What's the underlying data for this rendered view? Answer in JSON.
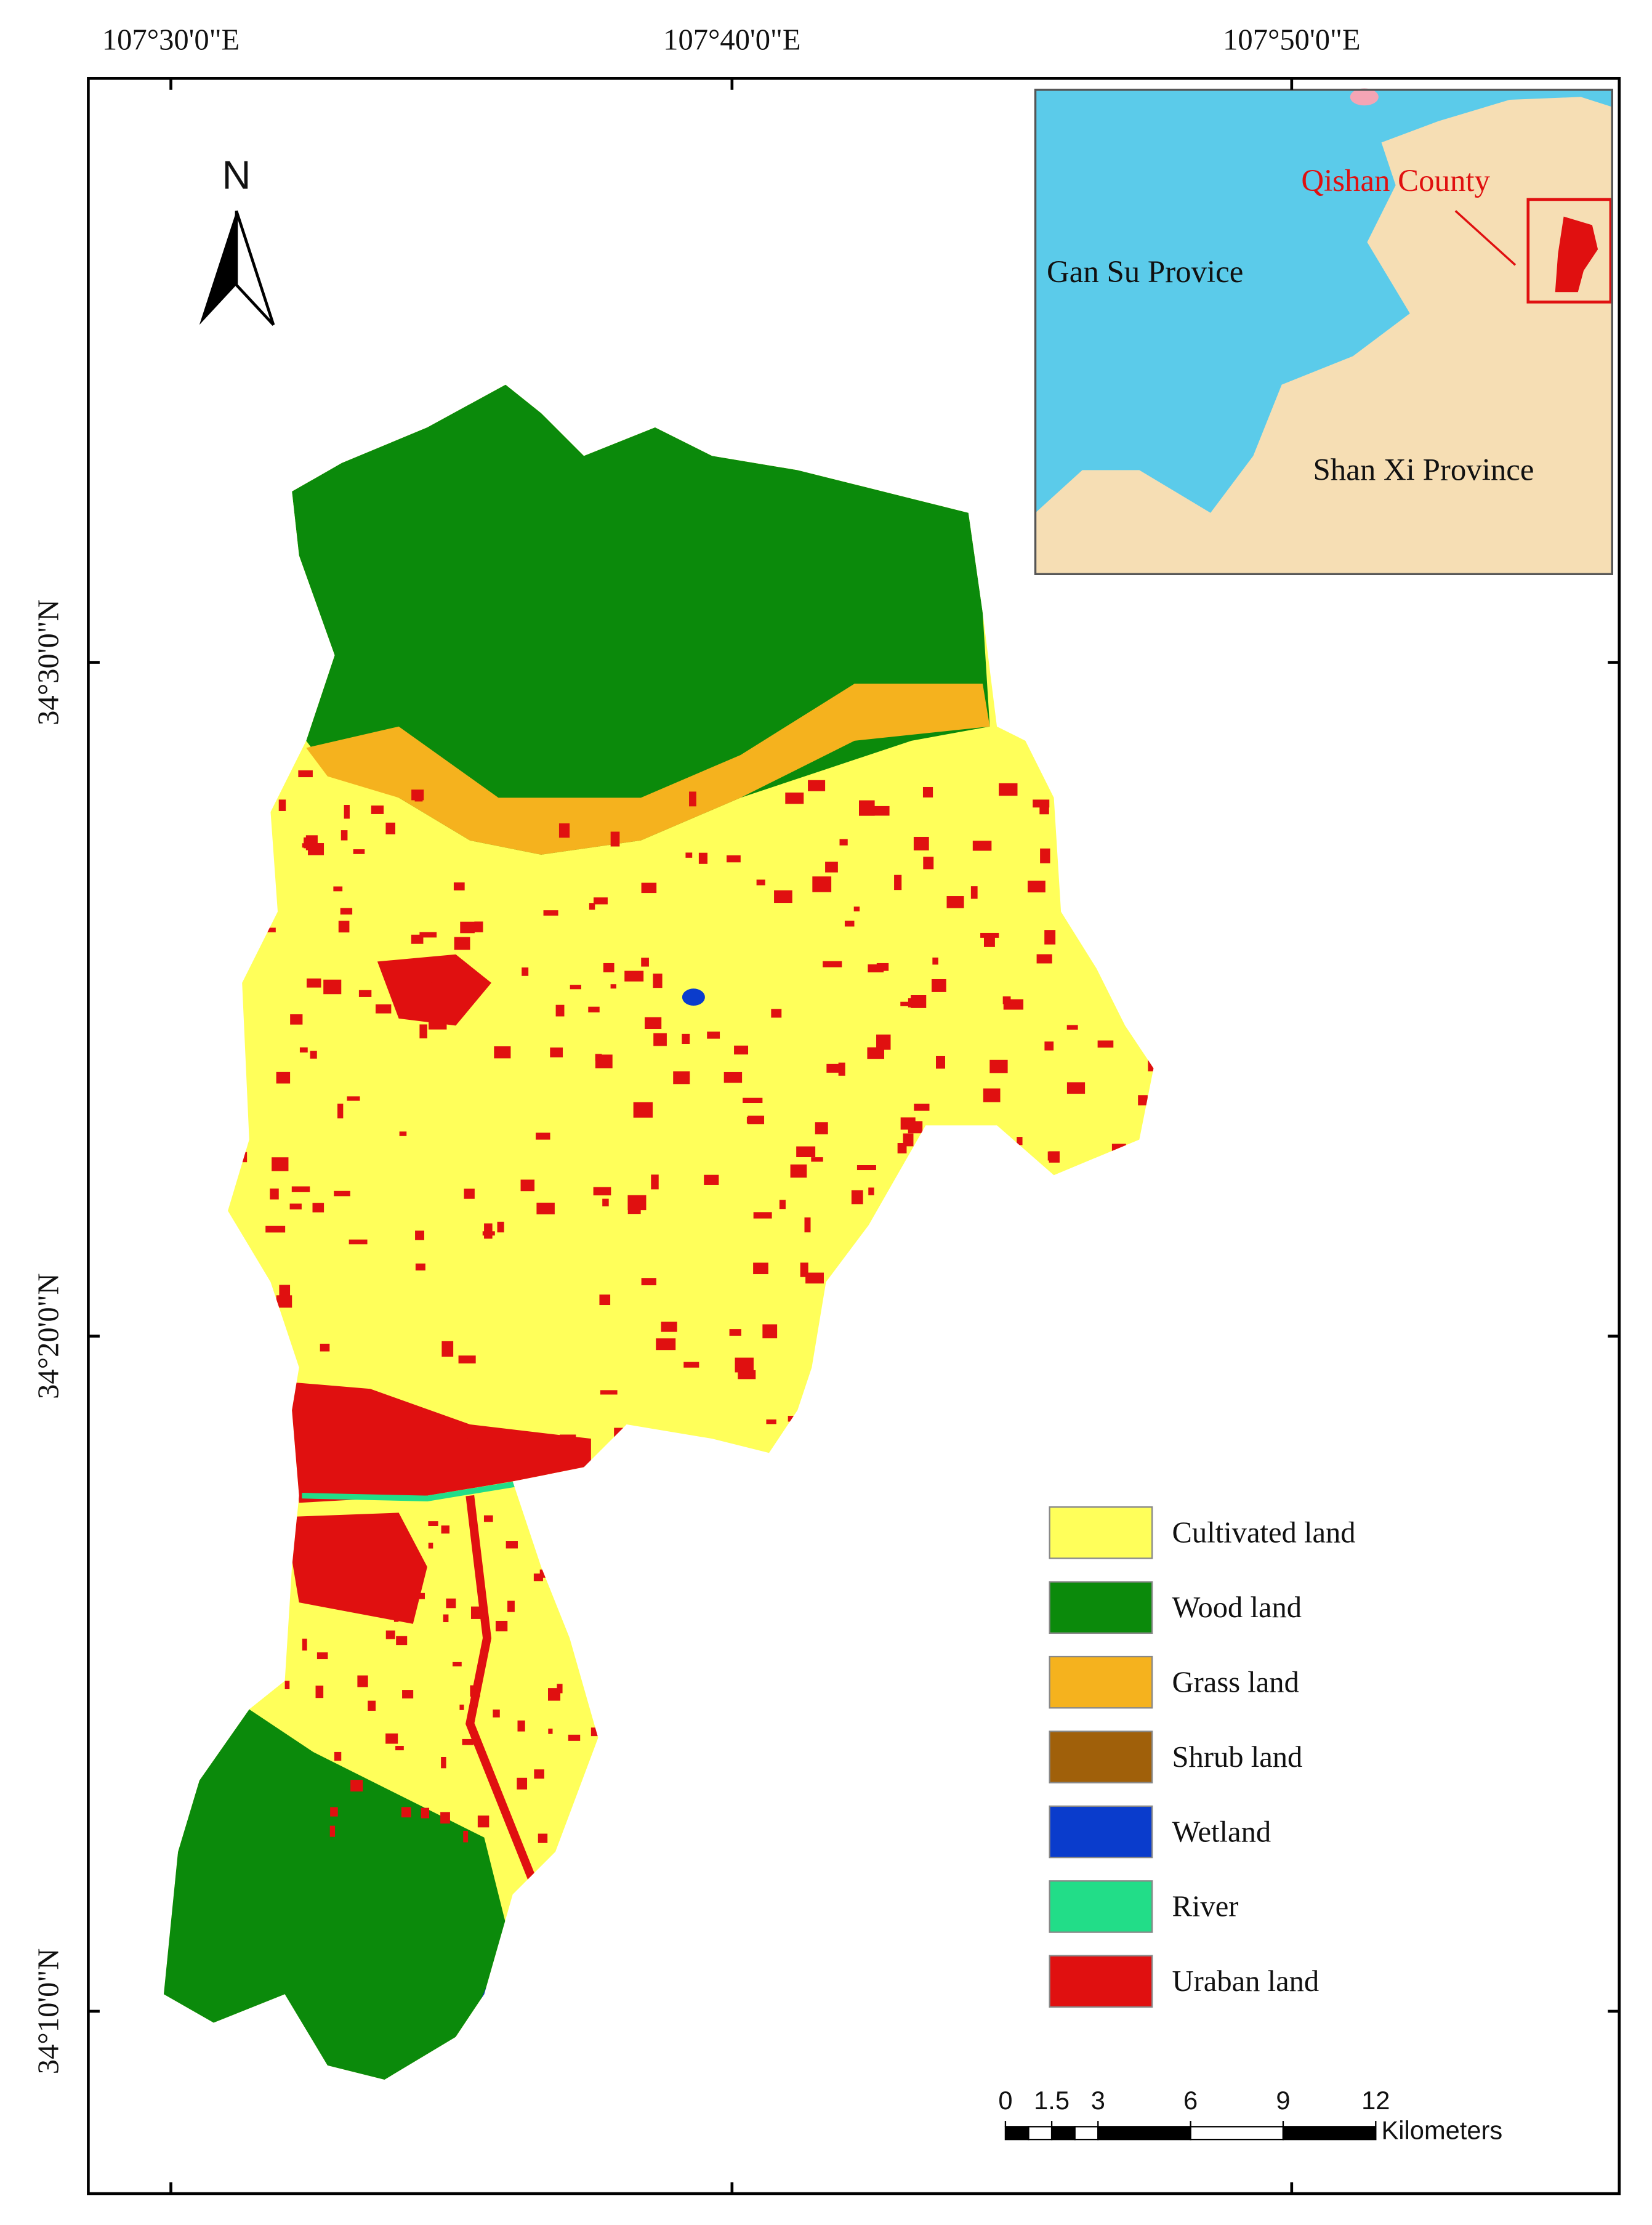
{
  "map": {
    "longitude_labels": [
      "107°30'0\"E",
      "107°40'0\"E",
      "107°50'0\"E"
    ],
    "latitude_labels": [
      "34°30'0\"N",
      "34°20'0\"N",
      "34°10'0\"N"
    ],
    "north_arrow": "N",
    "inset": {
      "county": "Qishan County",
      "gansu": "Gan Su Provice",
      "shaanxi": "Shan Xi Province"
    },
    "legend": [
      {
        "label": "Cultivated land",
        "color": "#ffff5a"
      },
      {
        "label": "Wood land",
        "color": "#0b8a0b"
      },
      {
        "label": "Grass land",
        "color": "#f5b21e"
      },
      {
        "label": "Shrub land",
        "color": "#a0600a"
      },
      {
        "label": "Wetland",
        "color": "#0a3ccc"
      },
      {
        "label": "River",
        "color": "#22dd88"
      },
      {
        "label": "Uraban land",
        "color": "#e01010"
      }
    ],
    "scale_bar": {
      "ticks": [
        0,
        1.5,
        3,
        6,
        9,
        12
      ],
      "unit": "Kilometers"
    }
  }
}
